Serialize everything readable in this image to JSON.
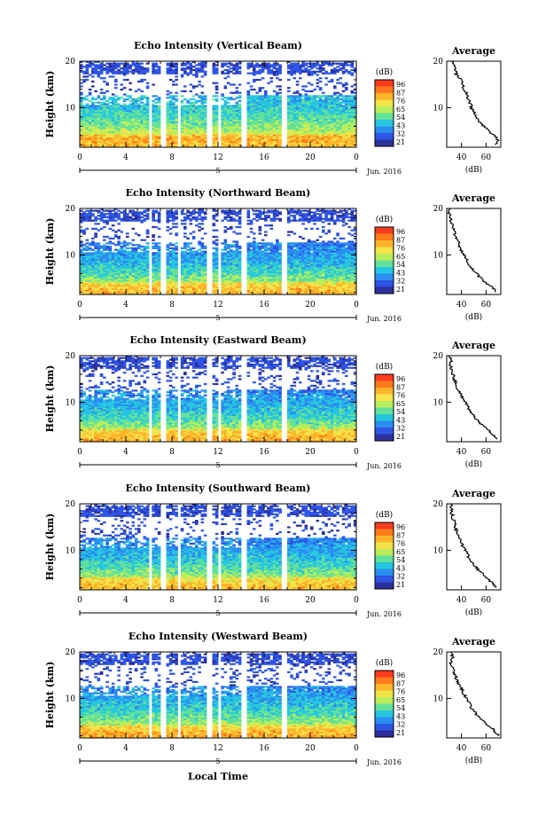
{
  "figure": {
    "x_axis_label": "Local Time",
    "date_label": "Jun. 2016",
    "day_marker": "5",
    "y_axis_label": "Height (km)",
    "colorbar_unit": "(dB)",
    "colorbar_ticks": [
      "96",
      "87",
      "76",
      "65",
      "54",
      "43",
      "32",
      "21"
    ],
    "colorbar_colors": [
      "#ff3b1f",
      "#ff7a1a",
      "#ffb42a",
      "#f3e34a",
      "#b8ee5a",
      "#63e19a",
      "#27c6e0",
      "#2b8df0",
      "#2d55e6",
      "#2c2f9c"
    ],
    "avg_title": "Average",
    "avg_xlabel": "(dB)",
    "accent": {
      "strong": "#ff3b1f",
      "weak": "#2c2f9c"
    }
  },
  "chart_data": [
    {
      "type": "heatmap",
      "title": "Echo Intensity (Vertical Beam)",
      "xlabel": "",
      "ylabel": "Height (km)",
      "x_ticks": [
        "0",
        "4",
        "8",
        "12",
        "16",
        "20",
        "0"
      ],
      "y_ticks": [
        "10",
        "20"
      ],
      "xlim": [
        0,
        24
      ],
      "ylim": [
        1.5,
        20
      ],
      "colorbar": {
        "label": "(dB)",
        "range": [
          21,
          96
        ],
        "ticks": [
          "96",
          "87",
          "76",
          "65",
          "54",
          "43",
          "32",
          "21"
        ]
      },
      "gaps_hours": [
        5.8,
        7.0,
        8.3,
        10.9,
        11.8,
        14.0,
        17.4
      ],
      "profile": {
        "title": "Average",
        "xlabel": "(dB)",
        "x_ticks": [
          "40",
          "60"
        ],
        "y_ticks": [
          "10",
          "20"
        ],
        "height": [
          2,
          3,
          4,
          5,
          6,
          7,
          8,
          9,
          10,
          11,
          12,
          13,
          14,
          15,
          16,
          17,
          18,
          19,
          20
        ],
        "value": [
          68,
          70,
          67,
          62,
          58,
          55,
          52,
          50,
          48,
          47,
          45,
          44,
          42,
          41,
          40,
          36,
          35,
          34,
          33
        ]
      }
    },
    {
      "type": "heatmap",
      "title": "Echo Intensity (Northward Beam)",
      "xlabel": "",
      "ylabel": "Height (km)",
      "x_ticks": [
        "0",
        "4",
        "8",
        "12",
        "16",
        "20",
        "0"
      ],
      "y_ticks": [
        "10",
        "20"
      ],
      "xlim": [
        0,
        24
      ],
      "ylim": [
        1.5,
        20
      ],
      "colorbar": {
        "label": "(dB)",
        "range": [
          21,
          96
        ],
        "ticks": [
          "96",
          "87",
          "76",
          "65",
          "54",
          "43",
          "32",
          "21"
        ]
      },
      "gaps_hours": [
        5.8,
        7.0,
        8.3,
        10.9,
        11.8,
        14.0,
        17.4
      ],
      "profile": {
        "title": "Average",
        "xlabel": "(dB)",
        "x_ticks": [
          "40",
          "60"
        ],
        "y_ticks": [
          "10",
          "20"
        ],
        "height": [
          2,
          3,
          4,
          5,
          6,
          7,
          8,
          9,
          10,
          11,
          12,
          13,
          14,
          15,
          16,
          17,
          18,
          19,
          20
        ],
        "value": [
          68,
          66,
          60,
          56,
          52,
          49,
          46,
          44,
          42,
          40,
          38,
          37,
          35,
          34,
          33,
          32,
          31,
          30,
          31
        ]
      }
    },
    {
      "type": "heatmap",
      "title": "Echo Intensity (Eastward Beam)",
      "xlabel": "",
      "ylabel": "Height (km)",
      "x_ticks": [
        "0",
        "4",
        "8",
        "12",
        "16",
        "20",
        "0"
      ],
      "y_ticks": [
        "10",
        "20"
      ],
      "xlim": [
        0,
        24
      ],
      "ylim": [
        1.5,
        20
      ],
      "colorbar": {
        "label": "(dB)",
        "range": [
          21,
          96
        ],
        "ticks": [
          "96",
          "87",
          "76",
          "65",
          "54",
          "43",
          "32",
          "21"
        ]
      },
      "gaps_hours": [
        5.8,
        7.0,
        8.3,
        10.9,
        11.8,
        14.0,
        17.4
      ],
      "profile": {
        "title": "Average",
        "xlabel": "(dB)",
        "x_ticks": [
          "40",
          "60"
        ],
        "y_ticks": [
          "10",
          "20"
        ],
        "height": [
          2,
          3,
          4,
          5,
          6,
          7,
          8,
          9,
          10,
          11,
          12,
          13,
          14,
          15,
          16,
          17,
          18,
          19,
          20
        ],
        "value": [
          69,
          66,
          62,
          57,
          53,
          50,
          47,
          45,
          43,
          41,
          39,
          37,
          36,
          34,
          33,
          32,
          31,
          32,
          31
        ]
      }
    },
    {
      "type": "heatmap",
      "title": "Echo Intensity (Southward Beam)",
      "xlabel": "",
      "ylabel": "Height (km)",
      "x_ticks": [
        "0",
        "4",
        "8",
        "12",
        "16",
        "20",
        "0"
      ],
      "y_ticks": [
        "10",
        "20"
      ],
      "xlim": [
        0,
        24
      ],
      "ylim": [
        1.5,
        20
      ],
      "colorbar": {
        "label": "(dB)",
        "range": [
          21,
          96
        ],
        "ticks": [
          "96",
          "87",
          "76",
          "65",
          "54",
          "43",
          "32",
          "21"
        ]
      },
      "gaps_hours": [
        5.8,
        7.0,
        8.3,
        10.9,
        11.8,
        14.0,
        17.4
      ],
      "profile": {
        "title": "Average",
        "xlabel": "(dB)",
        "x_ticks": [
          "40",
          "60"
        ],
        "y_ticks": [
          "10",
          "20"
        ],
        "height": [
          2,
          3,
          4,
          5,
          6,
          7,
          8,
          9,
          10,
          11,
          12,
          13,
          14,
          15,
          16,
          17,
          18,
          19,
          20
        ],
        "value": [
          68,
          65,
          61,
          57,
          53,
          50,
          47,
          45,
          43,
          41,
          39,
          38,
          36,
          35,
          34,
          33,
          32,
          32,
          31
        ]
      }
    },
    {
      "type": "heatmap",
      "title": "Echo Intensity (Westward Beam)",
      "xlabel": "Local Time",
      "ylabel": "Height (km)",
      "x_ticks": [
        "0",
        "4",
        "8",
        "12",
        "16",
        "20",
        "0"
      ],
      "y_ticks": [
        "10",
        "20"
      ],
      "xlim": [
        0,
        24
      ],
      "ylim": [
        1.5,
        20
      ],
      "colorbar": {
        "label": "(dB)",
        "range": [
          21,
          96
        ],
        "ticks": [
          "96",
          "87",
          "76",
          "65",
          "54",
          "43",
          "32",
          "21"
        ]
      },
      "gaps_hours": [
        5.8,
        7.0,
        8.3,
        10.9,
        11.8,
        14.0,
        17.4
      ],
      "profile": {
        "title": "Average",
        "xlabel": "(dB)",
        "x_ticks": [
          "40",
          "60"
        ],
        "y_ticks": [
          "10",
          "20"
        ],
        "height": [
          2,
          3,
          4,
          5,
          6,
          7,
          8,
          9,
          10,
          11,
          12,
          13,
          14,
          15,
          16,
          17,
          18,
          19,
          20
        ],
        "value": [
          70,
          67,
          63,
          58,
          54,
          51,
          48,
          46,
          44,
          42,
          40,
          38,
          36,
          35,
          34,
          32,
          31,
          33,
          31
        ]
      }
    }
  ]
}
